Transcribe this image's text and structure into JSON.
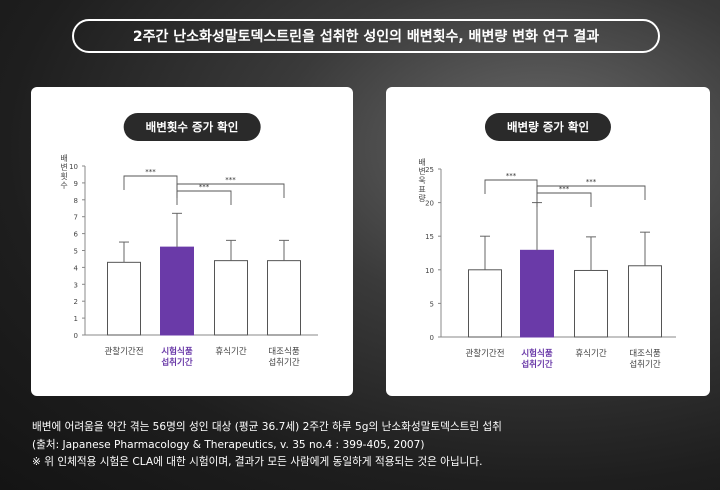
{
  "banner": {
    "title": "2주간 난소화성말토덱스트린을 섭취한 성인의 배변횟수, 배변량 변화 연구 결과"
  },
  "colors": {
    "highlight": "#6a3aa8",
    "bar_outline": "#555555",
    "pill_bg": "#2a2a2a"
  },
  "chart_data": [
    {
      "type": "bar",
      "title": "배변횟수 증가 확인",
      "ylabel": "배변횟수",
      "ylim": [
        0,
        10
      ],
      "yticks": [
        "0",
        "1",
        "2",
        "3",
        "4",
        "5",
        "6",
        "7",
        "8",
        "9",
        "10"
      ],
      "categories": [
        [
          "관찰기간전"
        ],
        [
          "시험식품",
          "섭취기간"
        ],
        [
          "휴식기간"
        ],
        [
          "대조식품",
          "섭취기간"
        ]
      ],
      "highlight_index": 1,
      "values": [
        4.3,
        5.2,
        4.4,
        4.4
      ],
      "errors": [
        1.2,
        2.0,
        1.2,
        1.2
      ],
      "significance": [
        "***",
        "***",
        "***"
      ]
    },
    {
      "type": "bar",
      "title": "배변량 증가 확인",
      "ylabel": "배변욱표량",
      "ylim": [
        0,
        25
      ],
      "yticks": [
        "0",
        "5",
        "10",
        "15",
        "20",
        "25"
      ],
      "categories": [
        [
          "관찰기간전"
        ],
        [
          "시험식품",
          "섭취기간"
        ],
        [
          "휴식기간"
        ],
        [
          "대조식품",
          "섭취기간"
        ]
      ],
      "highlight_index": 1,
      "values": [
        10.0,
        12.9,
        9.9,
        10.6
      ],
      "errors": [
        5.0,
        7.1,
        5.0,
        5.0
      ],
      "significance": [
        "***",
        "***",
        "***"
      ]
    }
  ],
  "footer": {
    "line1": "배변에 어려움을 약간 겪는 56명의 성인 대상 (평균 36.7세) 2주간 하루 5g의 난소화성말토덱스트린 섭취",
    "line2": "(출처: Japanese Pharmacology & Therapeutics, v. 35 no.4 : 399-405, 2007)",
    "line3": "※ 위 인체적용 시험은 CLA에 대한 시험이며, 결과가 모든 사람에게 동일하게 적용되는 것은 아닙니다."
  }
}
